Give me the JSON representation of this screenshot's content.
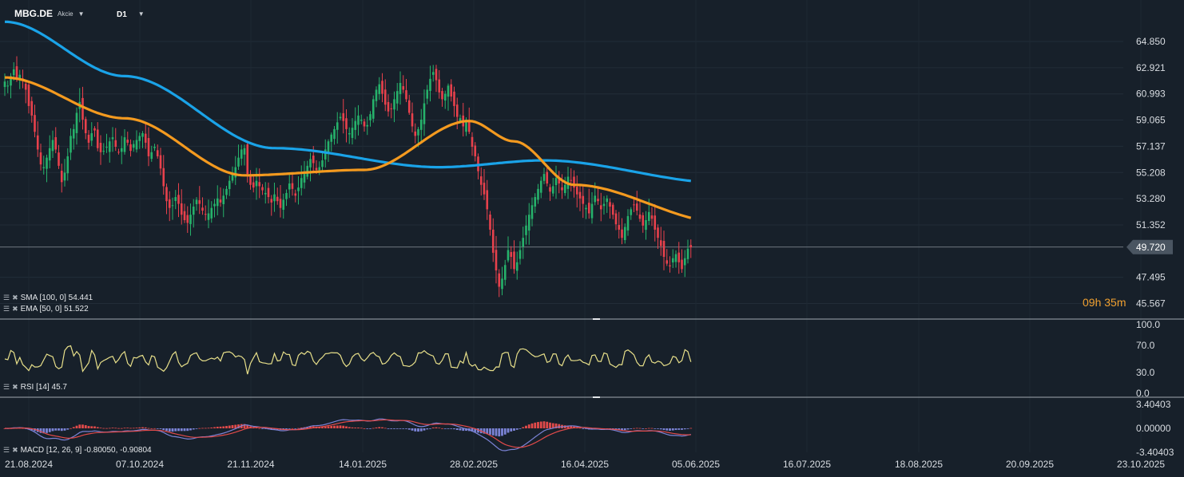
{
  "header": {
    "symbol": "MBG.DE",
    "type_label": "Akcie",
    "timeframe": "D1"
  },
  "legend": {
    "sma": "SMA [100, 0] 54.441",
    "ema": "EMA [50, 0] 51.522",
    "rsi": "RSI [14] 45.7",
    "macd": "MACD [12, 26, 9] -0.80050, -0.90804"
  },
  "countdown": {
    "hours": "09",
    "h": "h",
    "minutes": "35",
    "m": "m"
  },
  "price_badge": "49.720",
  "colors": {
    "bg": "#17202a",
    "up": "#26b26b",
    "down": "#e8414c",
    "sma": "#1aa3e8",
    "ema": "#f49a1f",
    "rsi": "#e8e08a",
    "macd_line": "#7b83d6",
    "signal_line": "#e24a4a"
  },
  "chart_data": [
    {
      "type": "candlestick",
      "title": "MBG.DE",
      "y_ticks": [
        "64.850",
        "62.921",
        "60.993",
        "59.065",
        "57.137",
        "55.208",
        "53.280",
        "51.352",
        "47.495",
        "45.567"
      ],
      "ylim": [
        45.567,
        66.3
      ],
      "x_ticks": [
        "21.08.2024",
        "07.10.2024",
        "21.11.2024",
        "14.01.2025",
        "28.02.2025",
        "16.04.2025",
        "05.06.2025",
        "16.07.2025",
        "18.08.2025",
        "20.09.2025",
        "23.10.2025"
      ],
      "last_price": 49.72,
      "close": [
        61.9,
        61.6,
        62.3,
        62.8,
        62.1,
        62.4,
        62.0,
        61.3,
        60.1,
        59.4,
        58.2,
        56.9,
        55.8,
        55.6,
        56.3,
        57.0,
        57.6,
        56.9,
        55.7,
        54.5,
        55.2,
        56.4,
        57.9,
        58.4,
        59.6,
        60.4,
        59.1,
        58.1,
        57.4,
        58.1,
        58.3,
        57.0,
        56.7,
        56.8,
        57.1,
        57.5,
        57.8,
        57.1,
        56.7,
        57.0,
        57.8,
        57.4,
        56.8,
        57.3,
        57.6,
        57.9,
        58.1,
        57.4,
        56.4,
        56.7,
        57.1,
        56.4,
        55.5,
        54.2,
        53.1,
        52.6,
        52.8,
        53.4,
        52.9,
        52.1,
        51.7,
        51.5,
        52.1,
        52.7,
        53.2,
        52.9,
        52.4,
        52.1,
        52.2,
        52.6,
        52.9,
        53.3,
        53.0,
        53.5,
        54.0,
        54.6,
        55.2,
        55.6,
        56.3,
        56.9,
        57.0,
        55.1,
        54.3,
        54.1,
        54.6,
        54.2,
        53.9,
        53.7,
        53.4,
        53.0,
        53.6,
        53.1,
        52.6,
        53.2,
        53.7,
        54.4,
        54.0,
        53.5,
        54.1,
        54.8,
        55.1,
        55.7,
        56.2,
        55.9,
        55.4,
        55.6,
        56.1,
        56.9,
        57.5,
        58.0,
        58.4,
        58.9,
        59.3,
        59.0,
        58.4,
        58.1,
        58.5,
        59.0,
        59.4,
        59.1,
        58.6,
        58.7,
        59.5,
        60.6,
        61.3,
        61.7,
        61.0,
        60.2,
        59.7,
        59.9,
        60.6,
        61.2,
        61.8,
        61.3,
        60.6,
        59.6,
        58.6,
        57.9,
        58.4,
        59.1,
        60.3,
        61.3,
        62.1,
        62.6,
        62.0,
        61.1,
        60.6,
        61.0,
        61.6,
        60.8,
        60.1,
        59.3,
        59.2,
        58.6,
        59.1,
        58.2,
        57.1,
        56.4,
        55.3,
        54.3,
        53.6,
        52.5,
        51.0,
        49.3,
        48.0,
        46.8,
        47.4,
        48.4,
        49.5,
        49.0,
        48.1,
        48.6,
        49.5,
        50.4,
        51.3,
        52.1,
        52.8,
        53.4,
        54.0,
        54.6,
        55.1,
        54.4,
        53.8,
        54.2,
        54.8,
        54.4,
        53.9,
        54.3,
        54.9,
        54.6,
        54.1,
        53.6,
        53.3,
        52.9,
        52.6,
        52.2,
        52.9,
        53.5,
        53.1,
        52.5,
        52.9,
        53.3,
        52.7,
        52.1,
        51.4,
        51.0,
        50.4,
        51.2,
        52.0,
        52.5,
        52.8,
        52.4,
        51.8,
        51.3,
        51.7,
        52.3,
        51.8,
        51.0,
        50.4,
        49.8,
        49.0,
        48.5,
        48.3,
        48.9,
        49.2,
        48.6,
        48.1,
        48.9,
        49.6,
        49.7
      ],
      "sma_100": {
        "x_index": [
          0,
          40,
          90,
          145,
          180,
          240
        ],
        "y": [
          66.3,
          62.3,
          57.0,
          55.6,
          56.1,
          54.44
        ]
      },
      "ema_50": {
        "x_index": [
          0,
          40,
          80,
          120,
          155,
          170,
          190,
          240
        ],
        "y": [
          62.2,
          59.2,
          55.0,
          55.4,
          59.0,
          57.5,
          54.3,
          51.52
        ]
      }
    },
    {
      "type": "line",
      "title": "RSI [14]",
      "y_ticks": [
        "100.0",
        "70.0",
        "30.0",
        "0.0"
      ],
      "ylim": [
        0,
        100
      ],
      "last": 45.7
    },
    {
      "type": "line+bar",
      "title": "MACD [12, 26, 9]",
      "y_ticks": [
        "3.40403",
        "0.00000",
        "-3.40403"
      ],
      "ylim": [
        -3.40403,
        3.40403
      ],
      "macd": -0.8005,
      "signal": -0.90804
    }
  ]
}
